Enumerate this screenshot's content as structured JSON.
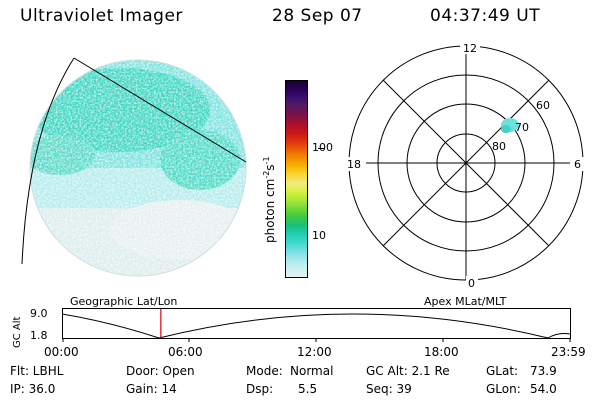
{
  "header": {
    "title": "Ultraviolet Imager",
    "date": "28 Sep 07",
    "time": "04:37:49 UT"
  },
  "colorbar": {
    "unit": "photon cm",
    "unit_exp1": "-2",
    "unit_mid": "s",
    "unit_exp2": "-1",
    "tick_labels": [
      "100",
      "10"
    ],
    "colors": [
      "#1a0030",
      "#2a0058",
      "#3a1070",
      "#5a1a60",
      "#7a1248",
      "#a8102a",
      "#c81418",
      "#dc3010",
      "#ec5c08",
      "#f48a00",
      "#f8b400",
      "#f8d830",
      "#f0ec80",
      "#d8f040",
      "#a8e838",
      "#70d838",
      "#38c848",
      "#18c080",
      "#20d0b0",
      "#40d8d0",
      "#78e0e4",
      "#a8e8ec",
      "#cceff2",
      "#e2f4f4"
    ]
  },
  "polar_plot": {
    "mlt_labels": [
      "12",
      "18",
      "6",
      "0"
    ],
    "lat_labels": [
      "60",
      "70",
      "80"
    ]
  },
  "timeline": {
    "left_label": "Geographic Lat/Lon",
    "right_label": "Apex MLat/MLT",
    "axis_label": "GC Alt",
    "y_ticks": [
      "9.0",
      "1.8"
    ],
    "x_ticks": [
      "00:00",
      "06:00",
      "12:00",
      "18:00",
      "23:59"
    ],
    "current_time_fraction": 0.193
  },
  "info": {
    "flt": "Flt: LBHL",
    "door": "Door: Open",
    "mode_label": "Mode:",
    "mode_value": "Normal",
    "gc_alt": "GC Alt: 2.1 Re",
    "glat_label": "GLat:",
    "glat_value": "73.9",
    "ip": "IP: 36.0",
    "gain": "Gain: 14",
    "dsp_label": "Dsp:",
    "dsp_value": "5.5",
    "seq": "Seq: 39",
    "glon_label": "GLon:",
    "glon_value": "54.0"
  },
  "icons": {
    "earth_disk": "uv-auroral-image",
    "time_marker": "red-time-marker"
  }
}
